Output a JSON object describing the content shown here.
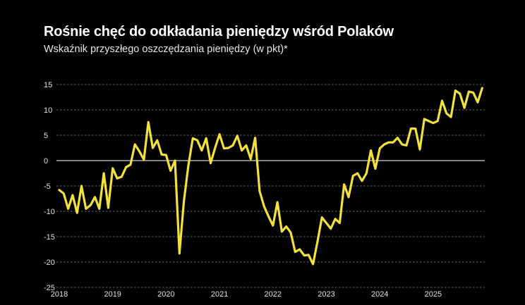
{
  "chart_data": {
    "type": "line",
    "title": "Rośnie chęć do odkładania pieniędzy wśród Polaków",
    "subtitle": "Wskaźnik przyszłego oszczędzania pieniędzy (w pkt)*",
    "xlabel": "",
    "ylabel": "",
    "ylim": [
      -25,
      15
    ],
    "yticks": [
      "15",
      "10",
      "5",
      "0",
      "-5",
      "-10",
      "-15",
      "-20",
      "-25"
    ],
    "xticks": [
      "2018",
      "2019",
      "2020",
      "2021",
      "2022",
      "2023",
      "2024",
      "2025"
    ],
    "grid": true,
    "line_color": "#f2e03c",
    "background": "#000000",
    "start": "2018-01",
    "frequency": "monthly",
    "values": [
      -5.8,
      -6.5,
      -9.5,
      -6.8,
      -10.3,
      -5.0,
      -9.5,
      -8.8,
      -7.2,
      -9.5,
      -2.5,
      -9.3,
      -1.5,
      -3.5,
      -3.2,
      -1.3,
      -0.8,
      3.2,
      1.8,
      0.2,
      7.6,
      2.5,
      4.0,
      1.2,
      1.1,
      -2.0,
      0.0,
      -18.3,
      -8.0,
      -1.0,
      4.4,
      4.0,
      2.0,
      4.4,
      -0.5,
      2.5,
      5.2,
      2.4,
      2.5,
      3.0,
      4.9,
      2.0,
      3.0,
      0.3,
      4.5,
      -6.0,
      -9.0,
      -11.0,
      -12.8,
      -8.2,
      -14.0,
      -13.0,
      -14.2,
      -18.0,
      -17.5,
      -18.7,
      -18.6,
      -20.4,
      -16.0,
      -11.2,
      -12.3,
      -13.4,
      -11.5,
      -12.3,
      -4.7,
      -7.2,
      -3.0,
      -2.5,
      -4.0,
      -2.5,
      2.0,
      -1.6,
      2.4,
      3.2,
      3.6,
      3.6,
      4.5,
      3.2,
      3.0,
      6.3,
      6.3,
      2.2,
      8.2,
      7.8,
      7.4,
      7.8,
      11.8,
      9.3,
      8.6,
      13.8,
      13.2,
      10.4,
      13.6,
      13.4,
      11.5,
      14.3
    ]
  }
}
